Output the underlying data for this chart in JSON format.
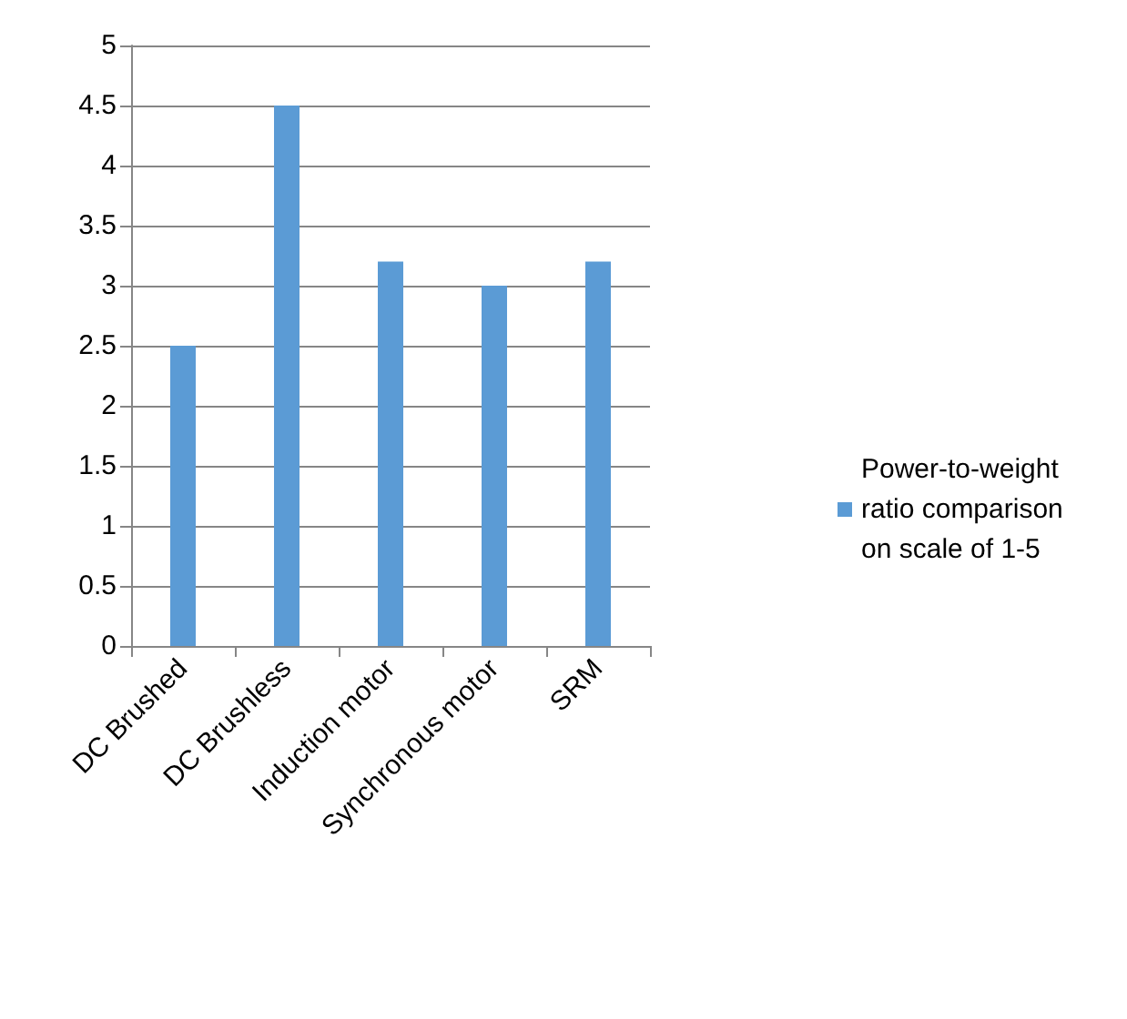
{
  "chart_data": {
    "type": "bar",
    "categories": [
      "DC Brushed",
      "DC Brushless",
      "Induction motor",
      "Synchronous motor",
      "SRM"
    ],
    "series": [
      {
        "name": "Power-to-weight ratio comparison on scale of 1-5",
        "color": "#5b9bd5",
        "values": [
          2.5,
          4.5,
          3.2,
          3.0,
          3.2
        ]
      }
    ],
    "ylim": [
      0,
      5
    ],
    "yticks": [
      0,
      0.5,
      1,
      1.5,
      2,
      2.5,
      3,
      3.5,
      4,
      4.5,
      5
    ],
    "grid": "y",
    "legend": "right"
  }
}
